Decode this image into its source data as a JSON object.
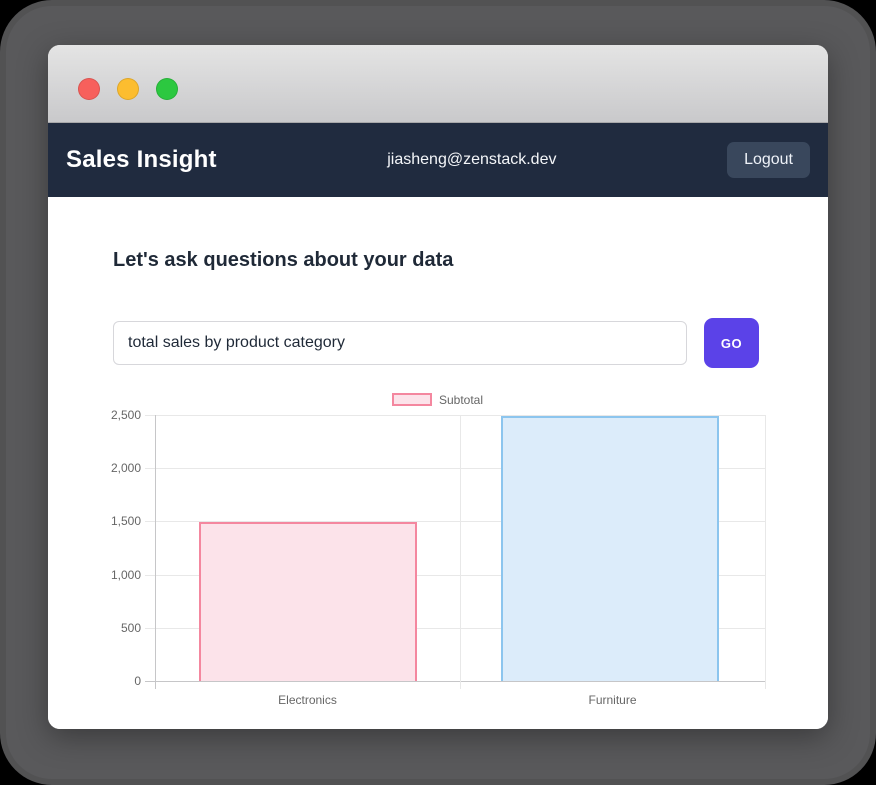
{
  "window": {
    "titlebar": {
      "traffic_lights": [
        "close",
        "minimize",
        "zoom"
      ]
    },
    "header": {
      "title": "Sales Insight",
      "user_email": "jiasheng@zenstack.dev",
      "logout_label": "Logout"
    },
    "main": {
      "heading": "Let's ask questions about your data",
      "query_input": {
        "value": "total sales by product category"
      },
      "go_button_label": "GO"
    }
  },
  "chart_data": {
    "type": "bar",
    "title": "",
    "categories": [
      "Electronics",
      "Furniture"
    ],
    "series": [
      {
        "name": "Subtotal",
        "values": [
          1490,
          2495
        ]
      }
    ],
    "legend": {
      "label": "Subtotal",
      "position": "top"
    },
    "xlabel": "",
    "ylabel": "",
    "ylim": [
      0,
      2500
    ],
    "yticks": [
      0,
      500,
      1000,
      1500,
      2000,
      2500
    ],
    "ytick_labels": [
      "0",
      "500",
      "1,000",
      "1,500",
      "2,000",
      "2,500"
    ],
    "grid": true,
    "bar_colors": [
      {
        "fill": "#fce3ea",
        "border": "#f4879f"
      },
      {
        "fill": "#dcecfa",
        "border": "#8cc5ee"
      }
    ]
  },
  "colors": {
    "frame": "#59595b",
    "titlebar_top": "#e4e4e4",
    "titlebar_bottom": "#c9c9cb",
    "traffic_red": "#f7605c",
    "traffic_yellow": "#fcbd2f",
    "traffic_green": "#2cc840",
    "header_bg": "#202b3f",
    "logout_bg": "#39475c",
    "accent_purple": "#5b42e8",
    "chart_text": "#666666",
    "grid_color": "#e8e8e8",
    "axis_color": "#c6c6c8"
  }
}
